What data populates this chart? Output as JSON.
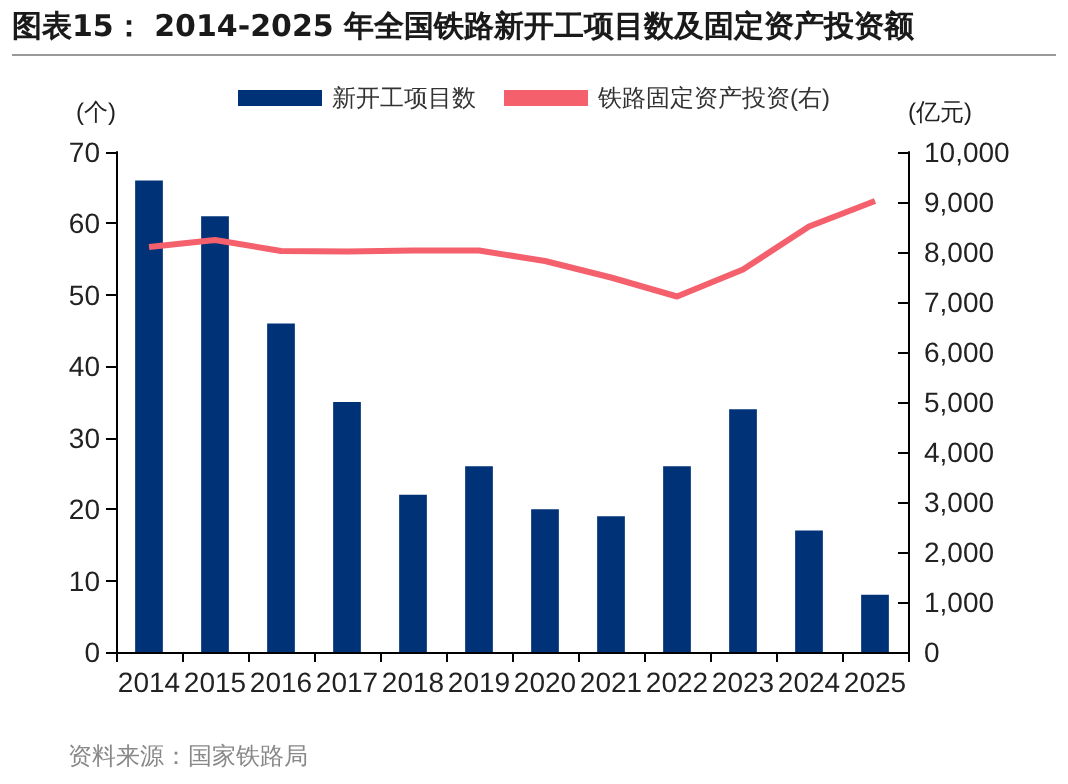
{
  "chart_data": {
    "type": "bar",
    "title": "图表15：  2014-2025 年全国铁路新开工项目数及固定资产投资额",
    "ylabel": "(个)",
    "y2label": "(亿元)",
    "categories": [
      "2014",
      "2015",
      "2016",
      "2017",
      "2018",
      "2019",
      "2020",
      "2021",
      "2022",
      "2023",
      "2024",
      "2025"
    ],
    "series": [
      {
        "name": "新开工项目数",
        "color": "#003278",
        "values": [
          66,
          61,
          46,
          35,
          22,
          26,
          20,
          19,
          26,
          34,
          17,
          8
        ]
      },
      {
        "name": "铁路固定资产投资(右)",
        "type": "line",
        "axis": "y2",
        "color": "#f4606c",
        "values": [
          8100,
          8240,
          8020,
          8010,
          8030,
          8030,
          7820,
          7490,
          7110,
          7650,
          8510,
          9020
        ]
      }
    ],
    "ylim": [
      0,
      70
    ],
    "yticks": [
      0,
      10,
      20,
      30,
      40,
      50,
      60,
      70
    ],
    "y2lim": [
      0,
      10000
    ],
    "y2ticks": [
      {
        "value": 0,
        "label": "0"
      },
      {
        "value": 1000,
        "label": "1,000"
      },
      {
        "value": 2000,
        "label": "2,000"
      },
      {
        "value": 3000,
        "label": "3,000"
      },
      {
        "value": 4000,
        "label": "4,000"
      },
      {
        "value": 5000,
        "label": "5,000"
      },
      {
        "value": 6000,
        "label": "6,000"
      },
      {
        "value": 7000,
        "label": "7,000"
      },
      {
        "value": 8000,
        "label": "8,000"
      },
      {
        "value": 9000,
        "label": "9,000"
      },
      {
        "value": 10000,
        "label": "10,000"
      }
    ],
    "grid": false,
    "legend": "top",
    "marker": "none",
    "annotations": [
      "资料来源：国家铁路局"
    ]
  }
}
